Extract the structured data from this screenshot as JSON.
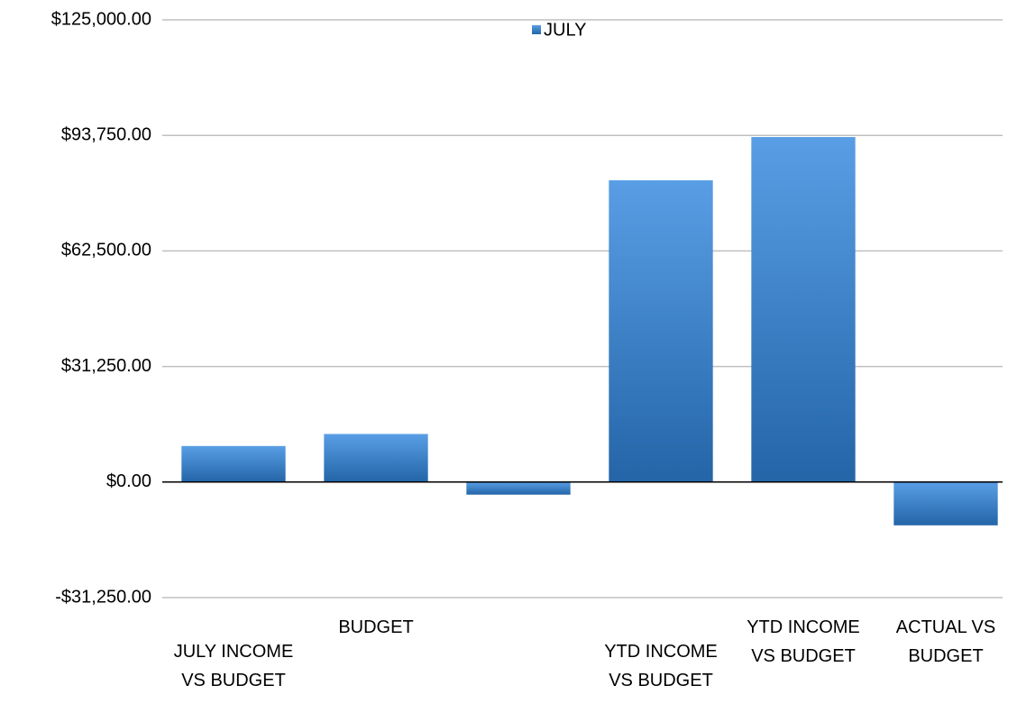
{
  "chart_data": {
    "type": "bar",
    "categories": [
      "JULY INCOME VS BUDGET",
      "BUDGET",
      null,
      "YTD INCOME VS BUDGET",
      "YTD INCOME VS BUDGET",
      "ACTUAL VS BUDGET"
    ],
    "series": [
      {
        "name": "JULY",
        "color": "#2f86de",
        "values": [
          9750,
          13000,
          -3400,
          81600,
          93300,
          -11700
        ]
      }
    ],
    "ylim": [
      -31250,
      125000
    ],
    "yticks": [
      {
        "value": -31250,
        "label": "-$31,250.00"
      },
      {
        "value": 0,
        "label": "$0.00"
      },
      {
        "value": 31250,
        "label": "$31,250.00"
      },
      {
        "value": 62500,
        "label": "$62,500.00"
      },
      {
        "value": 93750,
        "label": "$93,750.00"
      },
      {
        "value": 125000,
        "label": "$125,000.00"
      }
    ],
    "grid": true,
    "legend": "top"
  }
}
